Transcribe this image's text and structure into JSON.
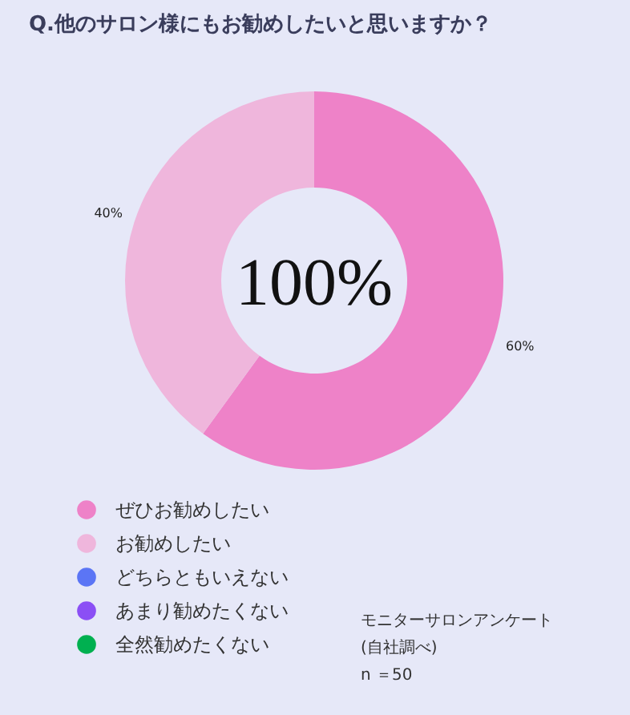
{
  "chart_data": {
    "type": "donut",
    "title": "Q.他のサロン様にもお勧めしたいと思いますか？",
    "categories": [
      "ぜひお勧めしたい",
      "お勧めしたい",
      "どちらともいえない",
      "あまり勧めたくない",
      "全然勧めたくない"
    ],
    "values": [
      60,
      40,
      0,
      0,
      0
    ],
    "colors": [
      "#ee82c8",
      "#efb6dc",
      "#5b75f5",
      "#8b4ff5",
      "#00b050"
    ],
    "value_labels": [
      "60%",
      "40%",
      null,
      null,
      null
    ],
    "annotations": [
      "100%",
      "モニターサロンアンケート\n(自社調べ)\nn ＝50"
    ],
    "legend": "bottom left"
  }
}
